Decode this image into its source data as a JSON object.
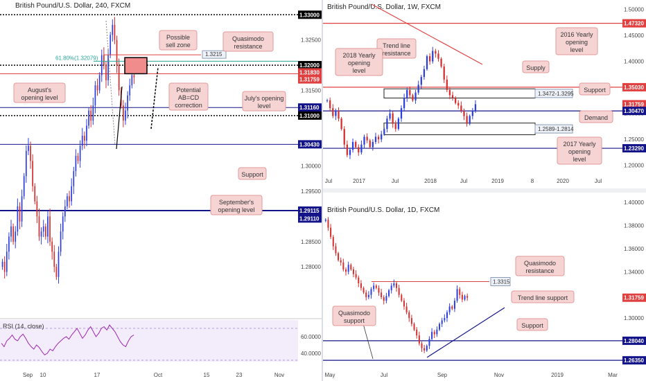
{
  "colors": {
    "navy": "#13138a",
    "red": "#e04040",
    "bull": "#2c3ee0",
    "bear": "#d42e2e",
    "rsi": "#9c27b0",
    "fib": "#26a69a"
  },
  "chart_data": [
    {
      "id": "4h",
      "type": "candlestick",
      "title": "British Pound/U.S. Dollar, 240, FXCM",
      "ylim": [
        1.27,
        1.331
      ],
      "x_ticks": [
        "Sep",
        "10",
        "17",
        "Oct",
        "15",
        "23",
        "Nov"
      ],
      "y_ticks": [
        "1.32500",
        "1.31500",
        "1.30000",
        "1.29500",
        "1.28500",
        "1.28000"
      ],
      "price_tags": [
        {
          "label": "1.33000",
          "value": 1.33,
          "color": "#000000"
        },
        {
          "label": "1.32000",
          "value": 1.32,
          "color": "#000000"
        },
        {
          "label": "1.31830",
          "value": 1.3183,
          "color": "#e04040"
        },
        {
          "label": "1.31759",
          "value": 1.31759,
          "color": "#e04040"
        },
        {
          "label": "1.31160",
          "value": 1.3116,
          "color": "#13138a"
        },
        {
          "label": "1.31000",
          "value": 1.31,
          "color": "#000000"
        },
        {
          "label": "1.30430",
          "value": 1.3043,
          "color": "#13138a"
        },
        {
          "label": "1.29115",
          "value": 1.29115,
          "color": "#13138a"
        },
        {
          "label": "1.29110",
          "value": 1.2911,
          "color": "#13138a"
        }
      ],
      "levels": [
        {
          "value": 1.33,
          "style": "dotted"
        },
        {
          "value": 1.32,
          "style": "dotted"
        },
        {
          "value": 1.3183,
          "style": "red"
        },
        {
          "value": 1.3116,
          "style": "navy"
        },
        {
          "value": 1.31,
          "style": "dotted"
        },
        {
          "value": 1.3043,
          "style": "navy"
        },
        {
          "value": 1.29115,
          "style": "navy-thick"
        }
      ],
      "fib_label": "61.80%(1.32079)",
      "target_label": "1.3215",
      "annotations": [
        "Possible sell zone",
        "Quasimodo resistance",
        "August's opening level",
        "Potential AB=CD correction",
        "July's opening level",
        "Support",
        "September's opening level"
      ],
      "closes": [
        1.281,
        1.279,
        1.283,
        1.286,
        1.288,
        1.285,
        1.287,
        1.292,
        1.289,
        1.294,
        1.298,
        1.303,
        1.304,
        1.301,
        1.296,
        1.293,
        1.29,
        1.286,
        1.287,
        1.288,
        1.286,
        1.29,
        1.285,
        1.283,
        1.28,
        1.278,
        1.283,
        1.287,
        1.29,
        1.292,
        1.294,
        1.293,
        1.296,
        1.299,
        1.302,
        1.301,
        1.304,
        1.306,
        1.305,
        1.308,
        1.311,
        1.309,
        1.312,
        1.316,
        1.315,
        1.318,
        1.322,
        1.32,
        1.317,
        1.322,
        1.326,
        1.328,
        1.325,
        1.32,
        1.315,
        1.312,
        1.309,
        1.311,
        1.314,
        1.316,
        1.318,
        1.3176
      ]
    },
    {
      "id": "rsi",
      "type": "line",
      "title": "RSI (14, close)",
      "ylim": [
        30,
        80
      ],
      "y_ticks": [
        "60.0000",
        "40.0000"
      ],
      "values": [
        52,
        48,
        55,
        58,
        62,
        57,
        55,
        60,
        63,
        58,
        52,
        48,
        45,
        50,
        47,
        42,
        38,
        40,
        45,
        43,
        48,
        52,
        55,
        58,
        60,
        57,
        62,
        66,
        70,
        64,
        58,
        62,
        68,
        72,
        66,
        60,
        64,
        70,
        72,
        68,
        74,
        70,
        66,
        60,
        54,
        50,
        48,
        55,
        60,
        62
      ]
    },
    {
      "id": "1w",
      "type": "candlestick",
      "title": "British Pound/U.S. Dollar, 1W, FXCM",
      "ylim": [
        1.185,
        1.51
      ],
      "x_ticks": [
        "Jul",
        "2017",
        "Jul",
        "2018",
        "Jul",
        "2019",
        "8",
        "2020",
        "Jul"
      ],
      "y_ticks": [
        "1.50000",
        "1.45000",
        "1.40000",
        "1.35000",
        "1.30000",
        "1.25000",
        "1.20000"
      ],
      "price_tags": [
        {
          "label": "1.47320",
          "value": 1.4732,
          "color": "#e04040"
        },
        {
          "label": "1.35030",
          "value": 1.3503,
          "color": "#e04040"
        },
        {
          "label": "1.31759",
          "value": 1.31759,
          "color": "#e04040"
        },
        {
          "label": "1.30470",
          "value": 1.3047,
          "color": "#13138a"
        },
        {
          "label": "1.23290",
          "value": 1.2329,
          "color": "#13138a"
        }
      ],
      "levels": [
        {
          "value": 1.4732,
          "style": "red"
        },
        {
          "value": 1.3503,
          "style": "red"
        },
        {
          "value": 1.3047,
          "style": "navy"
        },
        {
          "value": 1.2329,
          "style": "navy"
        }
      ],
      "zones": [
        {
          "label": "1.3472-1.3295",
          "low": 1.3295,
          "high": 1.3472
        },
        {
          "label": "1.2589-1.2814",
          "low": 1.2589,
          "high": 1.2814
        }
      ],
      "annotations": [
        "Trend line resistance",
        "2018 Yearly opening level",
        "2016 Yearly opening level",
        "Supply",
        "Support",
        "Demand",
        "2017 Yearly opening level"
      ],
      "closes": [
        1.325,
        1.31,
        1.295,
        1.305,
        1.29,
        1.27,
        1.24,
        1.22,
        1.23,
        1.245,
        1.235,
        1.225,
        1.24,
        1.255,
        1.248,
        1.235,
        1.245,
        1.255,
        1.25,
        1.26,
        1.27,
        1.29,
        1.3,
        1.28,
        1.27,
        1.29,
        1.31,
        1.33,
        1.345,
        1.335,
        1.325,
        1.34,
        1.355,
        1.37,
        1.385,
        1.41,
        1.4,
        1.42,
        1.415,
        1.405,
        1.39,
        1.365,
        1.345,
        1.335,
        1.33,
        1.32,
        1.315,
        1.305,
        1.295,
        1.28,
        1.295,
        1.305,
        1.3176
      ]
    },
    {
      "id": "1d",
      "type": "candlestick",
      "title": "British Pound/U.S. Dollar, 1D, FXCM",
      "ylim": [
        1.26,
        1.4
      ],
      "x_ticks": [
        "May",
        "Jul",
        "Sep",
        "Nov",
        "2019",
        "Mar"
      ],
      "y_ticks": [
        "1.40000",
        "1.38000",
        "1.36000",
        "1.34000",
        "1.30000"
      ],
      "price_tags": [
        {
          "label": "1.31759",
          "value": 1.31759,
          "color": "#e04040"
        },
        {
          "label": "1.28040",
          "value": 1.2804,
          "color": "#13138a"
        },
        {
          "label": "1.26350",
          "value": 1.2635,
          "color": "#13138a"
        }
      ],
      "levels": [
        {
          "value": 1.3315,
          "style": "red-partial"
        },
        {
          "value": 1.2804,
          "style": "navy"
        },
        {
          "value": 1.2635,
          "style": "navy"
        }
      ],
      "target_label": "1.3315",
      "annotations": [
        "Quasimodo resistance",
        "Trend line support",
        "Support",
        "Quasimodo support"
      ],
      "closes": [
        1.385,
        1.378,
        1.37,
        1.362,
        1.356,
        1.35,
        1.348,
        1.342,
        1.34,
        1.346,
        1.342,
        1.338,
        1.335,
        1.33,
        1.326,
        1.322,
        1.318,
        1.32,
        1.325,
        1.328,
        1.326,
        1.322,
        1.318,
        1.315,
        1.319,
        1.324,
        1.328,
        1.33,
        1.326,
        1.32,
        1.315,
        1.31,
        1.305,
        1.3,
        1.295,
        1.29,
        1.285,
        1.278,
        1.274,
        1.272,
        1.276,
        1.282,
        1.288,
        1.286,
        1.29,
        1.295,
        1.298,
        1.3,
        1.305,
        1.31,
        1.308,
        1.315,
        1.325,
        1.32,
        1.316,
        1.319,
        1.3176
      ]
    }
  ]
}
